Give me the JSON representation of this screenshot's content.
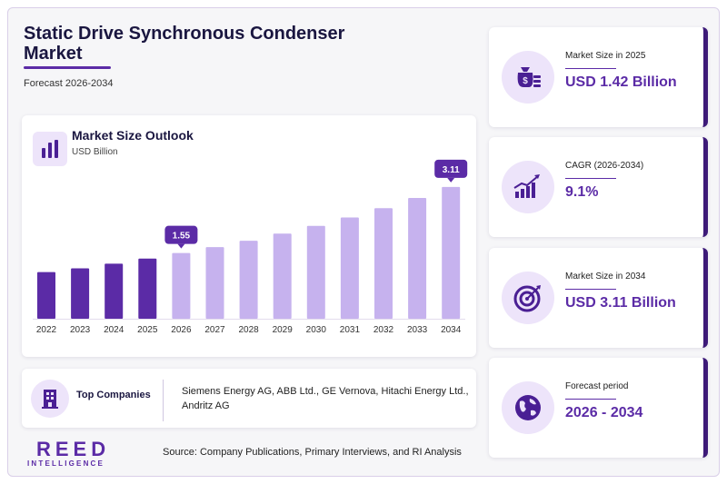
{
  "header": {
    "title": "Static Drive Synchronous Condenser Market",
    "subtitle": "Forecast 2026-2034"
  },
  "chart_panel": {
    "title": "Market Size Outlook",
    "unit": "USD Billion",
    "icon": "bar-chart-icon"
  },
  "chart_data": {
    "type": "bar",
    "categories": [
      "2022",
      "2023",
      "2024",
      "2025",
      "2026",
      "2027",
      "2028",
      "2029",
      "2030",
      "2031",
      "2032",
      "2033",
      "2034"
    ],
    "values": [
      1.1,
      1.19,
      1.3,
      1.42,
      1.55,
      1.69,
      1.84,
      2.01,
      2.19,
      2.39,
      2.61,
      2.85,
      3.11
    ],
    "value_labels": {
      "2026": "1.55",
      "2034": "3.11"
    },
    "historical_color": "#5b2ba6",
    "forecast_color": "#c6b2ee",
    "ylim": [
      0,
      3.3
    ],
    "grid": false,
    "xlabel": "",
    "ylabel": ""
  },
  "companies": {
    "label": "Top Companies",
    "text": "Siemens Energy AG, ABB Ltd., GE Vernova, Hitachi Energy Ltd., Andritz AG",
    "icon": "building-icon"
  },
  "logo": {
    "main": "REED",
    "sub": "INTELLIGENCE"
  },
  "source": "Source: Company Publications, Primary Interviews, and RI Analysis",
  "stats": [
    {
      "label": "Market Size in 2025",
      "value": "USD 1.42 Billion",
      "icon": "money-bag-icon"
    },
    {
      "label": "CAGR (2026-2034)",
      "value": "9.1%",
      "icon": "growth-chart-icon"
    },
    {
      "label": "Market Size in 2034",
      "value": "USD 3.11 Billion",
      "icon": "target-icon"
    },
    {
      "label": "Forecast period",
      "value": "2026 - 2034",
      "icon": "globe-icon"
    }
  ],
  "colors": {
    "accent": "#5b2ba6",
    "dark": "#3d1a78",
    "light": "#ede4fa"
  }
}
